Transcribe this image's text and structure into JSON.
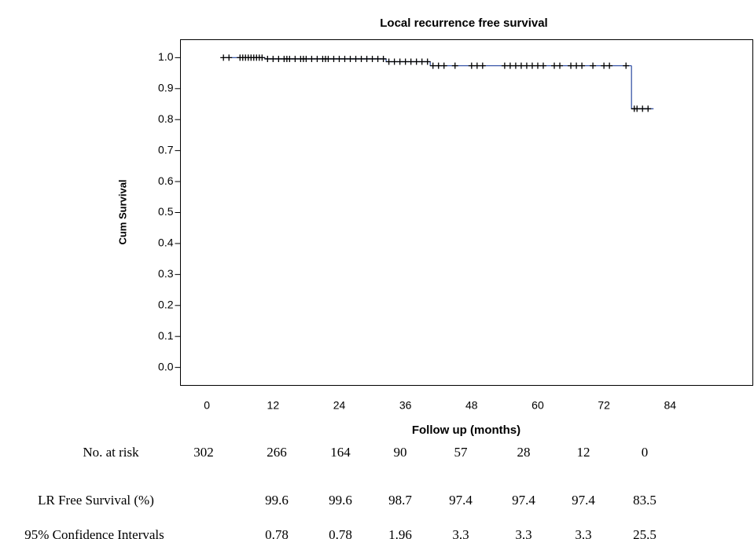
{
  "chart_data": {
    "type": "km",
    "title": "Local recurrence free survival",
    "xlabel": "Follow up (months)",
    "ylabel": "Cum Survival",
    "xlim": [
      -4.8,
      99
    ],
    "ylim": [
      -0.058,
      1.058
    ],
    "xticks": [
      0,
      12,
      24,
      36,
      48,
      60,
      72,
      84
    ],
    "yticks": [
      {
        "value": 0.0,
        "label": "0.0"
      },
      0.1,
      0.2,
      0.3,
      0.4,
      0.5,
      0.6,
      0.7,
      0.8,
      0.9,
      {
        "value": 1.0,
        "label": "1.0"
      }
    ],
    "series": [
      {
        "color": "#3a57a8",
        "step": "post",
        "x": [
          3,
          10.5,
          32.5,
          40.5,
          77,
          81
        ],
        "values": [
          1.0,
          0.996,
          0.987,
          0.974,
          0.835,
          0.835
        ]
      },
      {
        "color": "#000000",
        "marker": "plus",
        "x": [
          3,
          4,
          6,
          6.5,
          7,
          7.5,
          8,
          8.5,
          9,
          9.5,
          10,
          11,
          12,
          13,
          14,
          14.5,
          15,
          16,
          17,
          17.5,
          18,
          19,
          20,
          21,
          21.5,
          22,
          23,
          24,
          25,
          26,
          27,
          28,
          29,
          30,
          31,
          32,
          33,
          34,
          35,
          36,
          37,
          38,
          39,
          40,
          41,
          42,
          43,
          45,
          48,
          49,
          50,
          54,
          55,
          56,
          57,
          58,
          59,
          60,
          61,
          63,
          64,
          66,
          67,
          68,
          70,
          72,
          73,
          76,
          77.5,
          78,
          79,
          80
        ],
        "values": [
          1.0,
          1.0,
          1.0,
          1.0,
          1.0,
          1.0,
          1.0,
          1.0,
          1.0,
          1.0,
          1.0,
          0.996,
          0.996,
          0.996,
          0.996,
          0.996,
          0.996,
          0.996,
          0.996,
          0.996,
          0.996,
          0.996,
          0.996,
          0.996,
          0.996,
          0.996,
          0.996,
          0.996,
          0.996,
          0.996,
          0.996,
          0.996,
          0.996,
          0.996,
          0.996,
          0.996,
          0.987,
          0.987,
          0.987,
          0.987,
          0.987,
          0.987,
          0.987,
          0.987,
          0.974,
          0.974,
          0.974,
          0.974,
          0.974,
          0.974,
          0.974,
          0.974,
          0.974,
          0.974,
          0.974,
          0.974,
          0.974,
          0.974,
          0.974,
          0.974,
          0.974,
          0.974,
          0.974,
          0.974,
          0.974,
          0.974,
          0.974,
          0.974,
          0.835,
          0.835,
          0.835,
          0.835
        ]
      }
    ]
  },
  "table": {
    "rows": [
      {
        "label": "No. at risk",
        "values": [
          302,
          266,
          164,
          90,
          57,
          28,
          12,
          0
        ]
      },
      {
        "label": "LR Free Survival (%)",
        "values": [
          null,
          99.6,
          99.6,
          98.7,
          97.4,
          97.4,
          97.4,
          83.5
        ]
      },
      {
        "label": "95% Confidence Intervals",
        "values": [
          null,
          0.78,
          0.78,
          1.96,
          3.3,
          3.3,
          3.3,
          25.5
        ]
      }
    ]
  }
}
